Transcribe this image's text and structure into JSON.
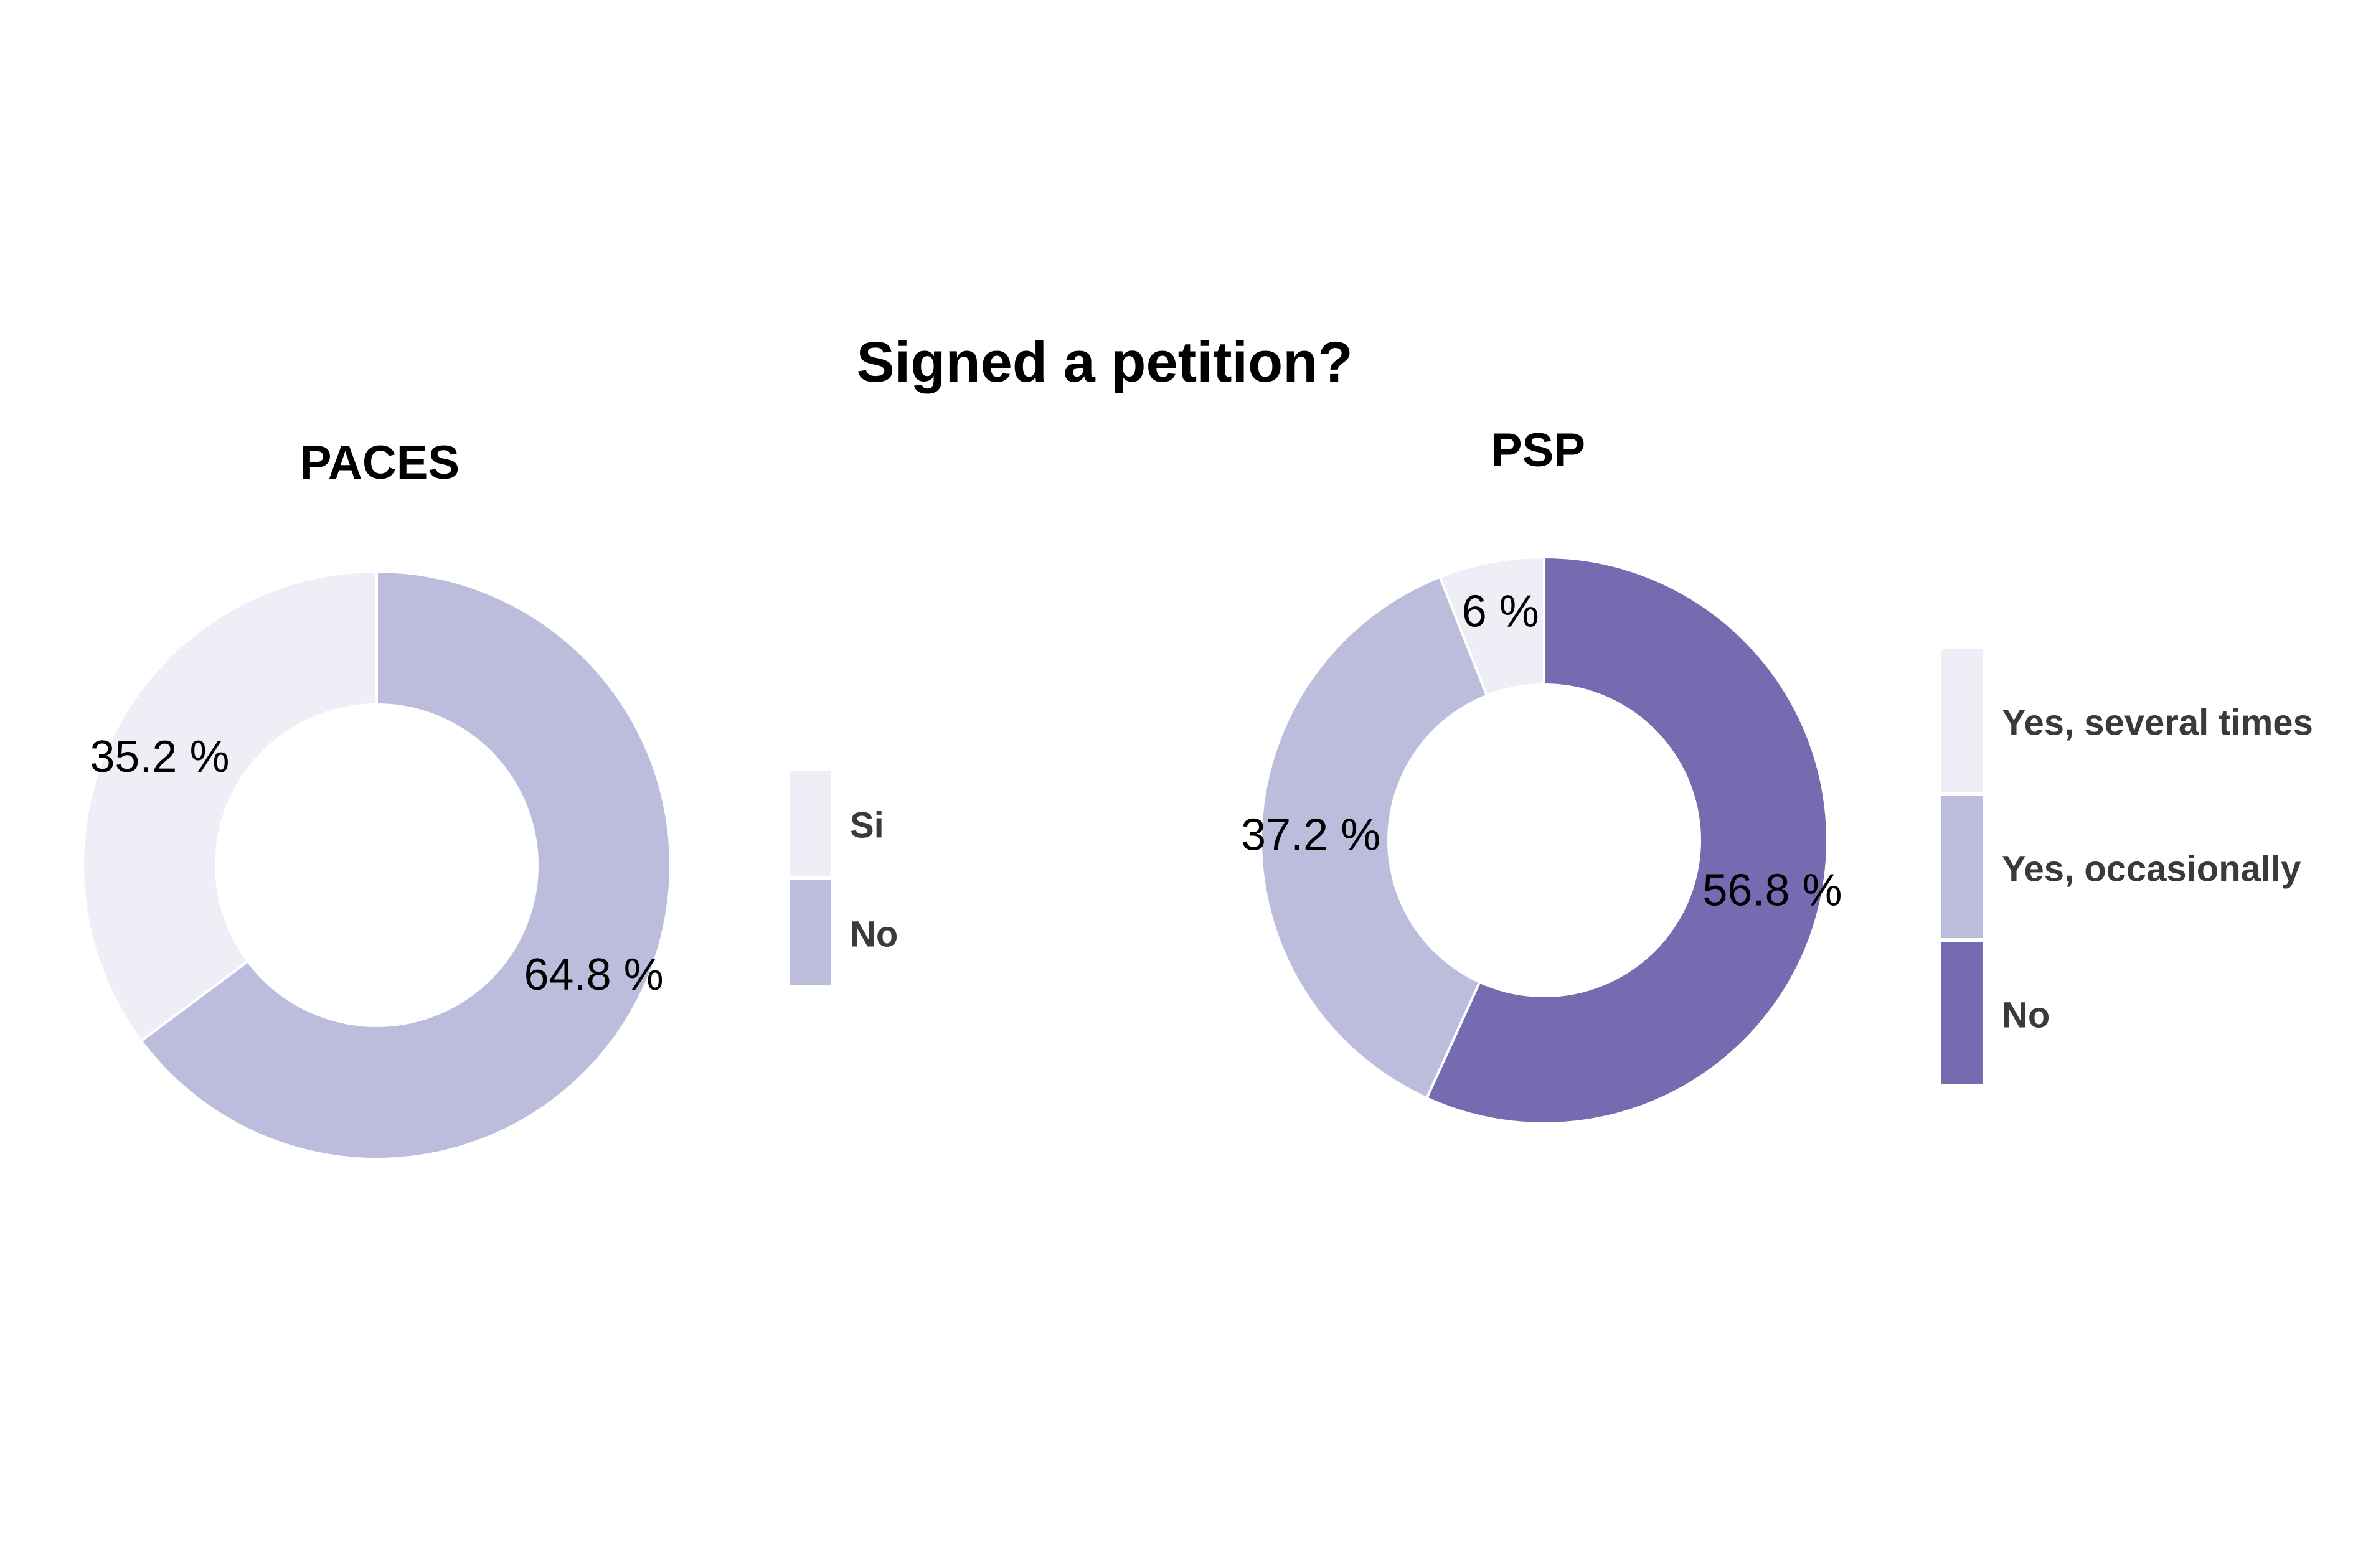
{
  "chart_data": {
    "title": "Signed a petition?",
    "charts": [
      {
        "type": "pie",
        "title": "PACES",
        "categories": [
          "Si",
          "No"
        ],
        "values": [
          35.2,
          64.8
        ],
        "labels": [
          "35.2 %",
          "64.8 %"
        ],
        "colors": [
          "#efedf5",
          "#bcbddc"
        ],
        "legend_position": "right"
      },
      {
        "type": "pie",
        "title": "PSP",
        "categories": [
          "Yes, several times",
          "Yes, occasionally",
          "No"
        ],
        "values": [
          6,
          37.2,
          56.8
        ],
        "labels": [
          "6 %",
          "37.2 %",
          "56.8 %"
        ],
        "colors": [
          "#efedf5",
          "#bcbddc",
          "#756bb1"
        ],
        "legend_position": "right"
      }
    ]
  }
}
